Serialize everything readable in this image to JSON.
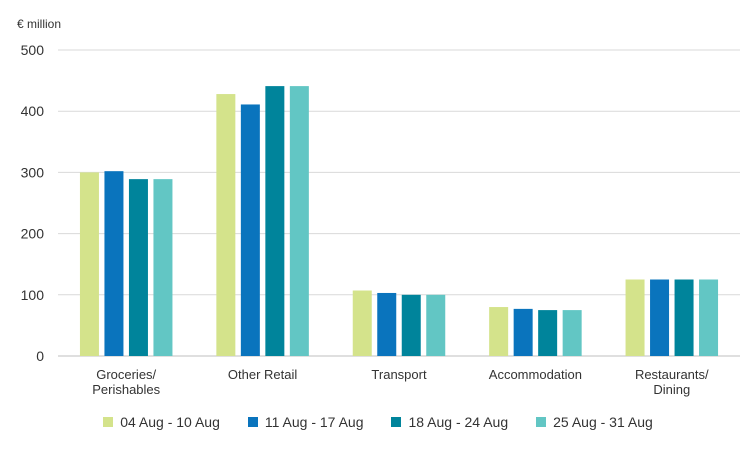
{
  "chart_data": {
    "type": "bar",
    "unit_label": "€ million",
    "categories": [
      [
        "Groceries/",
        "Perishables"
      ],
      [
        "Other Retail"
      ],
      [
        "Transport"
      ],
      [
        "Accommodation"
      ],
      [
        "Restaurants/",
        "Dining"
      ]
    ],
    "series": [
      {
        "name": "04 Aug - 10 Aug",
        "color": "#d4e38b",
        "values": [
          300,
          428,
          107,
          80,
          125
        ]
      },
      {
        "name": "11 Aug - 17 Aug",
        "color": "#0a74bd",
        "values": [
          302,
          411,
          103,
          77,
          125
        ]
      },
      {
        "name": "18 Aug - 24 Aug",
        "color": "#00849b",
        "values": [
          289,
          441,
          100,
          75,
          125
        ]
      },
      {
        "name": "25 Aug - 31 Aug",
        "color": "#62c6c4",
        "values": [
          289,
          441,
          100,
          75,
          125
        ]
      }
    ],
    "ylim": [
      0,
      500
    ],
    "yticks": [
      0,
      100,
      200,
      300,
      400,
      500
    ],
    "grid": true,
    "legend_position": "bottom"
  }
}
